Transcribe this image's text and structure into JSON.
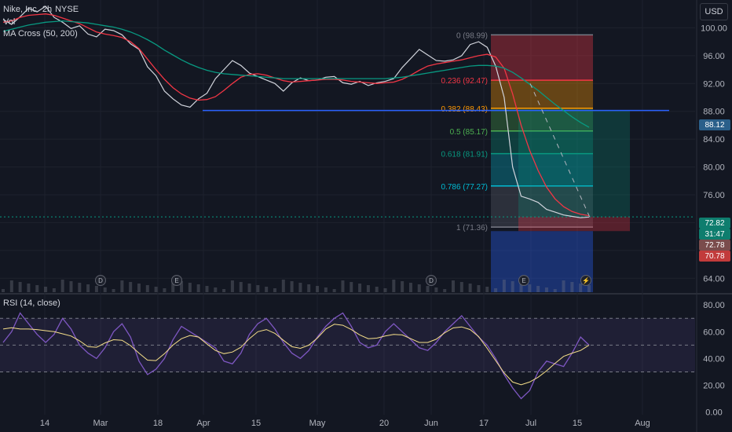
{
  "legend": {
    "symbol": "Nike, Inc.",
    "interval": "2h",
    "exchange": "NYSE",
    "vol_label": "Vol",
    "ma_label": "MA Cross (50, 200)",
    "rsi_label": "RSI (14, close)"
  },
  "currency": "USD",
  "price_tags": [
    {
      "text": "88.12",
      "color": "#2a5f8a"
    },
    {
      "text": "72.82",
      "color": "#0e7d6e"
    },
    {
      "text": "31:47",
      "color": "#0e7d6e"
    },
    {
      "text": "72.78",
      "color": "#7a4c4c"
    },
    {
      "text": "70.78",
      "color": "#c23b3b"
    }
  ],
  "events": [
    {
      "letter": "D",
      "month_pos": "Mar"
    },
    {
      "letter": "E",
      "month_pos": "18"
    },
    {
      "letter": "D",
      "month_pos": "Jun"
    },
    {
      "letter": "E",
      "month_pos": "Jul-"
    },
    {
      "letter": "⚡",
      "month_pos": "Jul+"
    }
  ],
  "chart_data": {
    "type": "line",
    "x_tick_labels": [
      "14",
      "Mar",
      "18",
      "Apr",
      "15",
      "May",
      "20",
      "Jun",
      "17",
      "Jul",
      "15",
      "Aug"
    ],
    "price_axis": {
      "ticks": [
        "100.00",
        "96.00",
        "92.00",
        "88.00",
        "84.00",
        "80.00",
        "76.00",
        "72.00",
        "68.00",
        "64.00"
      ],
      "ylim": [
        62,
        104
      ]
    },
    "rsi_axis": {
      "ticks": [
        "80.00",
        "60.00",
        "40.00",
        "20.00",
        "0.00"
      ],
      "ylim": [
        -2,
        86
      ],
      "bands": [
        30,
        70
      ],
      "mid": 50
    },
    "price_series": [
      {
        "name": "price",
        "values": [
          101.2,
          100.5,
          101.6,
          102.8,
          102.3,
          103.1,
          101.5,
          100.8,
          99.9,
          100.3,
          99.1,
          98.7,
          99.8,
          99.6,
          99.0,
          97.7,
          96.9,
          94.4,
          93.1,
          90.9,
          89.8,
          88.9,
          88.6,
          89.8,
          90.6,
          92.7,
          94.0,
          95.3,
          94.6,
          93.5,
          93.0,
          92.5,
          92.0,
          90.9,
          92.1,
          92.8,
          92.4,
          92.5,
          92.9,
          93.0,
          92.1,
          91.9,
          92.3,
          91.7,
          92.1,
          92.3,
          92.7,
          94.3,
          95.6,
          96.9,
          96.1,
          95.3,
          95.2,
          95.4,
          96.0,
          97.6,
          98.0,
          97.2,
          94.5,
          90.0,
          80.0,
          75.8,
          75.4,
          74.9,
          73.9,
          73.5,
          73.1,
          72.9,
          72.7,
          72.8
        ]
      },
      {
        "name": "MA 50",
        "values": [
          100.8,
          101.0,
          101.5,
          101.8,
          101.9,
          102.0,
          101.8,
          101.4,
          101.0,
          100.6,
          100.0,
          99.4,
          99.1,
          98.9,
          98.6,
          98.0,
          97.0,
          95.5,
          94.0,
          92.6,
          91.4,
          90.5,
          89.9,
          89.6,
          89.7,
          90.1,
          91.0,
          92.0,
          92.9,
          93.3,
          93.4,
          93.2,
          92.8,
          92.4,
          92.2,
          92.3,
          92.4,
          92.5,
          92.6,
          92.6,
          92.5,
          92.3,
          92.2,
          92.1,
          92.0,
          92.1,
          92.2,
          92.6,
          93.2,
          93.9,
          94.5,
          94.8,
          95.0,
          95.2,
          95.4,
          95.7,
          96.0,
          96.2,
          95.8,
          94.2,
          90.5,
          86.0,
          82.4,
          79.5,
          77.1,
          75.4,
          74.3,
          73.6,
          73.2,
          73.0
        ]
      },
      {
        "name": "MA 200",
        "values": [
          99.5,
          99.8,
          100.1,
          100.4,
          100.6,
          100.8,
          100.9,
          101.0,
          100.9,
          100.8,
          100.7,
          100.5,
          100.3,
          100.1,
          99.8,
          99.4,
          98.9,
          98.3,
          97.6,
          96.8,
          96.1,
          95.4,
          94.8,
          94.3,
          93.9,
          93.6,
          93.4,
          93.3,
          93.2,
          93.1,
          93.0,
          92.9,
          92.8,
          92.7,
          92.7,
          92.7,
          92.7,
          92.7,
          92.7,
          92.7,
          92.7,
          92.7,
          92.7,
          92.7,
          92.7,
          92.7,
          92.8,
          92.9,
          93.1,
          93.3,
          93.5,
          93.7,
          93.9,
          94.1,
          94.3,
          94.5,
          94.6,
          94.6,
          94.5,
          94.2,
          93.6,
          92.8,
          91.9,
          91.0,
          90.0,
          89.0,
          88.1,
          87.2,
          86.4,
          85.7
        ]
      }
    ],
    "horizontal_level": 88.12,
    "fibonacci": {
      "high": 98.99,
      "low": 71.36,
      "levels": [
        {
          "ratio": "0",
          "price": 98.99,
          "label": "0 (98.99)",
          "color": "#787b86"
        },
        {
          "ratio": "0.236",
          "price": 92.47,
          "label": "0.236 (92.47)",
          "color": "#f23645"
        },
        {
          "ratio": "0.382",
          "price": 88.43,
          "label": "0.382 (88.43)",
          "color": "#ff9800"
        },
        {
          "ratio": "0.5",
          "price": 85.17,
          "label": "0.5 (85.17)",
          "color": "#4caf50"
        },
        {
          "ratio": "0.618",
          "price": 81.91,
          "label": "0.618 (81.91)",
          "color": "#089981"
        },
        {
          "ratio": "0.786",
          "price": 77.27,
          "label": "0.786 (77.27)",
          "color": "#00bcd4"
        },
        {
          "ratio": "1",
          "price": 71.36,
          "label": "1 (71.36)",
          "color": "#787b86"
        }
      ]
    },
    "position_box": {
      "entry": 72.82,
      "target": 88.12,
      "stop": 70.78
    },
    "rsi_series": [
      {
        "name": "RSI",
        "values": [
          52,
          60,
          74,
          66,
          58,
          52,
          58,
          70,
          62,
          50,
          44,
          40,
          48,
          60,
          66,
          56,
          38,
          28,
          32,
          40,
          54,
          64,
          60,
          56,
          52,
          48,
          38,
          36,
          44,
          58,
          66,
          70,
          62,
          52,
          44,
          40,
          46,
          56,
          64,
          70,
          74,
          64,
          52,
          48,
          50,
          60,
          66,
          60,
          54,
          48,
          46,
          52,
          60,
          66,
          72,
          64,
          56,
          50,
          40,
          28,
          18,
          10,
          16,
          30,
          38,
          36,
          34,
          44,
          56,
          50
        ]
      }
    ]
  }
}
